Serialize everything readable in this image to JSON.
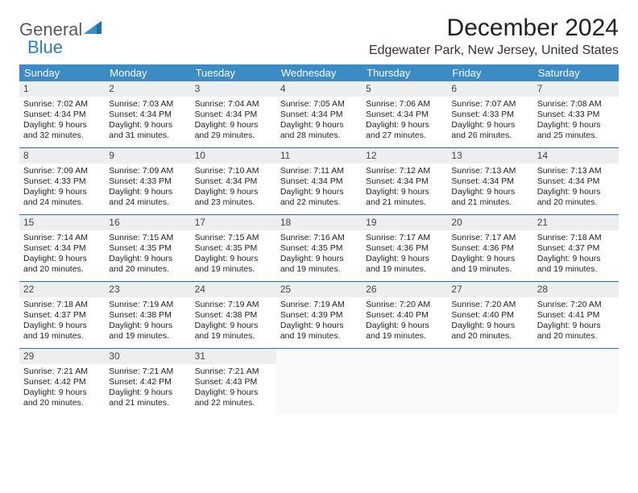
{
  "brand": {
    "general": "General",
    "blue": "Blue"
  },
  "title": "December 2024",
  "location": "Edgewater Park, New Jersey, United States",
  "colors": {
    "header_bg": "#3b8bc4",
    "header_text": "#ffffff",
    "daynum_bg": "#eceeef",
    "week_border": "#2f6fa0",
    "brand_gray": "#5a5a5a",
    "brand_blue": "#2a7fbf"
  },
  "day_names": [
    "Sunday",
    "Monday",
    "Tuesday",
    "Wednesday",
    "Thursday",
    "Friday",
    "Saturday"
  ],
  "weeks": [
    [
      {
        "n": "1",
        "sr": "7:02 AM",
        "ss": "4:34 PM",
        "dh": "9",
        "dm": "32"
      },
      {
        "n": "2",
        "sr": "7:03 AM",
        "ss": "4:34 PM",
        "dh": "9",
        "dm": "31"
      },
      {
        "n": "3",
        "sr": "7:04 AM",
        "ss": "4:34 PM",
        "dh": "9",
        "dm": "29"
      },
      {
        "n": "4",
        "sr": "7:05 AM",
        "ss": "4:34 PM",
        "dh": "9",
        "dm": "28"
      },
      {
        "n": "5",
        "sr": "7:06 AM",
        "ss": "4:34 PM",
        "dh": "9",
        "dm": "27"
      },
      {
        "n": "6",
        "sr": "7:07 AM",
        "ss": "4:33 PM",
        "dh": "9",
        "dm": "26"
      },
      {
        "n": "7",
        "sr": "7:08 AM",
        "ss": "4:33 PM",
        "dh": "9",
        "dm": "25"
      }
    ],
    [
      {
        "n": "8",
        "sr": "7:09 AM",
        "ss": "4:33 PM",
        "dh": "9",
        "dm": "24"
      },
      {
        "n": "9",
        "sr": "7:09 AM",
        "ss": "4:33 PM",
        "dh": "9",
        "dm": "24"
      },
      {
        "n": "10",
        "sr": "7:10 AM",
        "ss": "4:34 PM",
        "dh": "9",
        "dm": "23"
      },
      {
        "n": "11",
        "sr": "7:11 AM",
        "ss": "4:34 PM",
        "dh": "9",
        "dm": "22"
      },
      {
        "n": "12",
        "sr": "7:12 AM",
        "ss": "4:34 PM",
        "dh": "9",
        "dm": "21"
      },
      {
        "n": "13",
        "sr": "7:13 AM",
        "ss": "4:34 PM",
        "dh": "9",
        "dm": "21"
      },
      {
        "n": "14",
        "sr": "7:13 AM",
        "ss": "4:34 PM",
        "dh": "9",
        "dm": "20"
      }
    ],
    [
      {
        "n": "15",
        "sr": "7:14 AM",
        "ss": "4:34 PM",
        "dh": "9",
        "dm": "20"
      },
      {
        "n": "16",
        "sr": "7:15 AM",
        "ss": "4:35 PM",
        "dh": "9",
        "dm": "20"
      },
      {
        "n": "17",
        "sr": "7:15 AM",
        "ss": "4:35 PM",
        "dh": "9",
        "dm": "19"
      },
      {
        "n": "18",
        "sr": "7:16 AM",
        "ss": "4:35 PM",
        "dh": "9",
        "dm": "19"
      },
      {
        "n": "19",
        "sr": "7:17 AM",
        "ss": "4:36 PM",
        "dh": "9",
        "dm": "19"
      },
      {
        "n": "20",
        "sr": "7:17 AM",
        "ss": "4:36 PM",
        "dh": "9",
        "dm": "19"
      },
      {
        "n": "21",
        "sr": "7:18 AM",
        "ss": "4:37 PM",
        "dh": "9",
        "dm": "19"
      }
    ],
    [
      {
        "n": "22",
        "sr": "7:18 AM",
        "ss": "4:37 PM",
        "dh": "9",
        "dm": "19"
      },
      {
        "n": "23",
        "sr": "7:19 AM",
        "ss": "4:38 PM",
        "dh": "9",
        "dm": "19"
      },
      {
        "n": "24",
        "sr": "7:19 AM",
        "ss": "4:38 PM",
        "dh": "9",
        "dm": "19"
      },
      {
        "n": "25",
        "sr": "7:19 AM",
        "ss": "4:39 PM",
        "dh": "9",
        "dm": "19"
      },
      {
        "n": "26",
        "sr": "7:20 AM",
        "ss": "4:40 PM",
        "dh": "9",
        "dm": "19"
      },
      {
        "n": "27",
        "sr": "7:20 AM",
        "ss": "4:40 PM",
        "dh": "9",
        "dm": "20"
      },
      {
        "n": "28",
        "sr": "7:20 AM",
        "ss": "4:41 PM",
        "dh": "9",
        "dm": "20"
      }
    ],
    [
      {
        "n": "29",
        "sr": "7:21 AM",
        "ss": "4:42 PM",
        "dh": "9",
        "dm": "20"
      },
      {
        "n": "30",
        "sr": "7:21 AM",
        "ss": "4:42 PM",
        "dh": "9",
        "dm": "21"
      },
      {
        "n": "31",
        "sr": "7:21 AM",
        "ss": "4:43 PM",
        "dh": "9",
        "dm": "22"
      },
      null,
      null,
      null,
      null
    ]
  ],
  "labels": {
    "sunrise": "Sunrise:",
    "sunset": "Sunset:",
    "daylight_prefix": "Daylight:",
    "hours_word": "hours",
    "and_word": "and",
    "minutes_word": "minutes."
  }
}
